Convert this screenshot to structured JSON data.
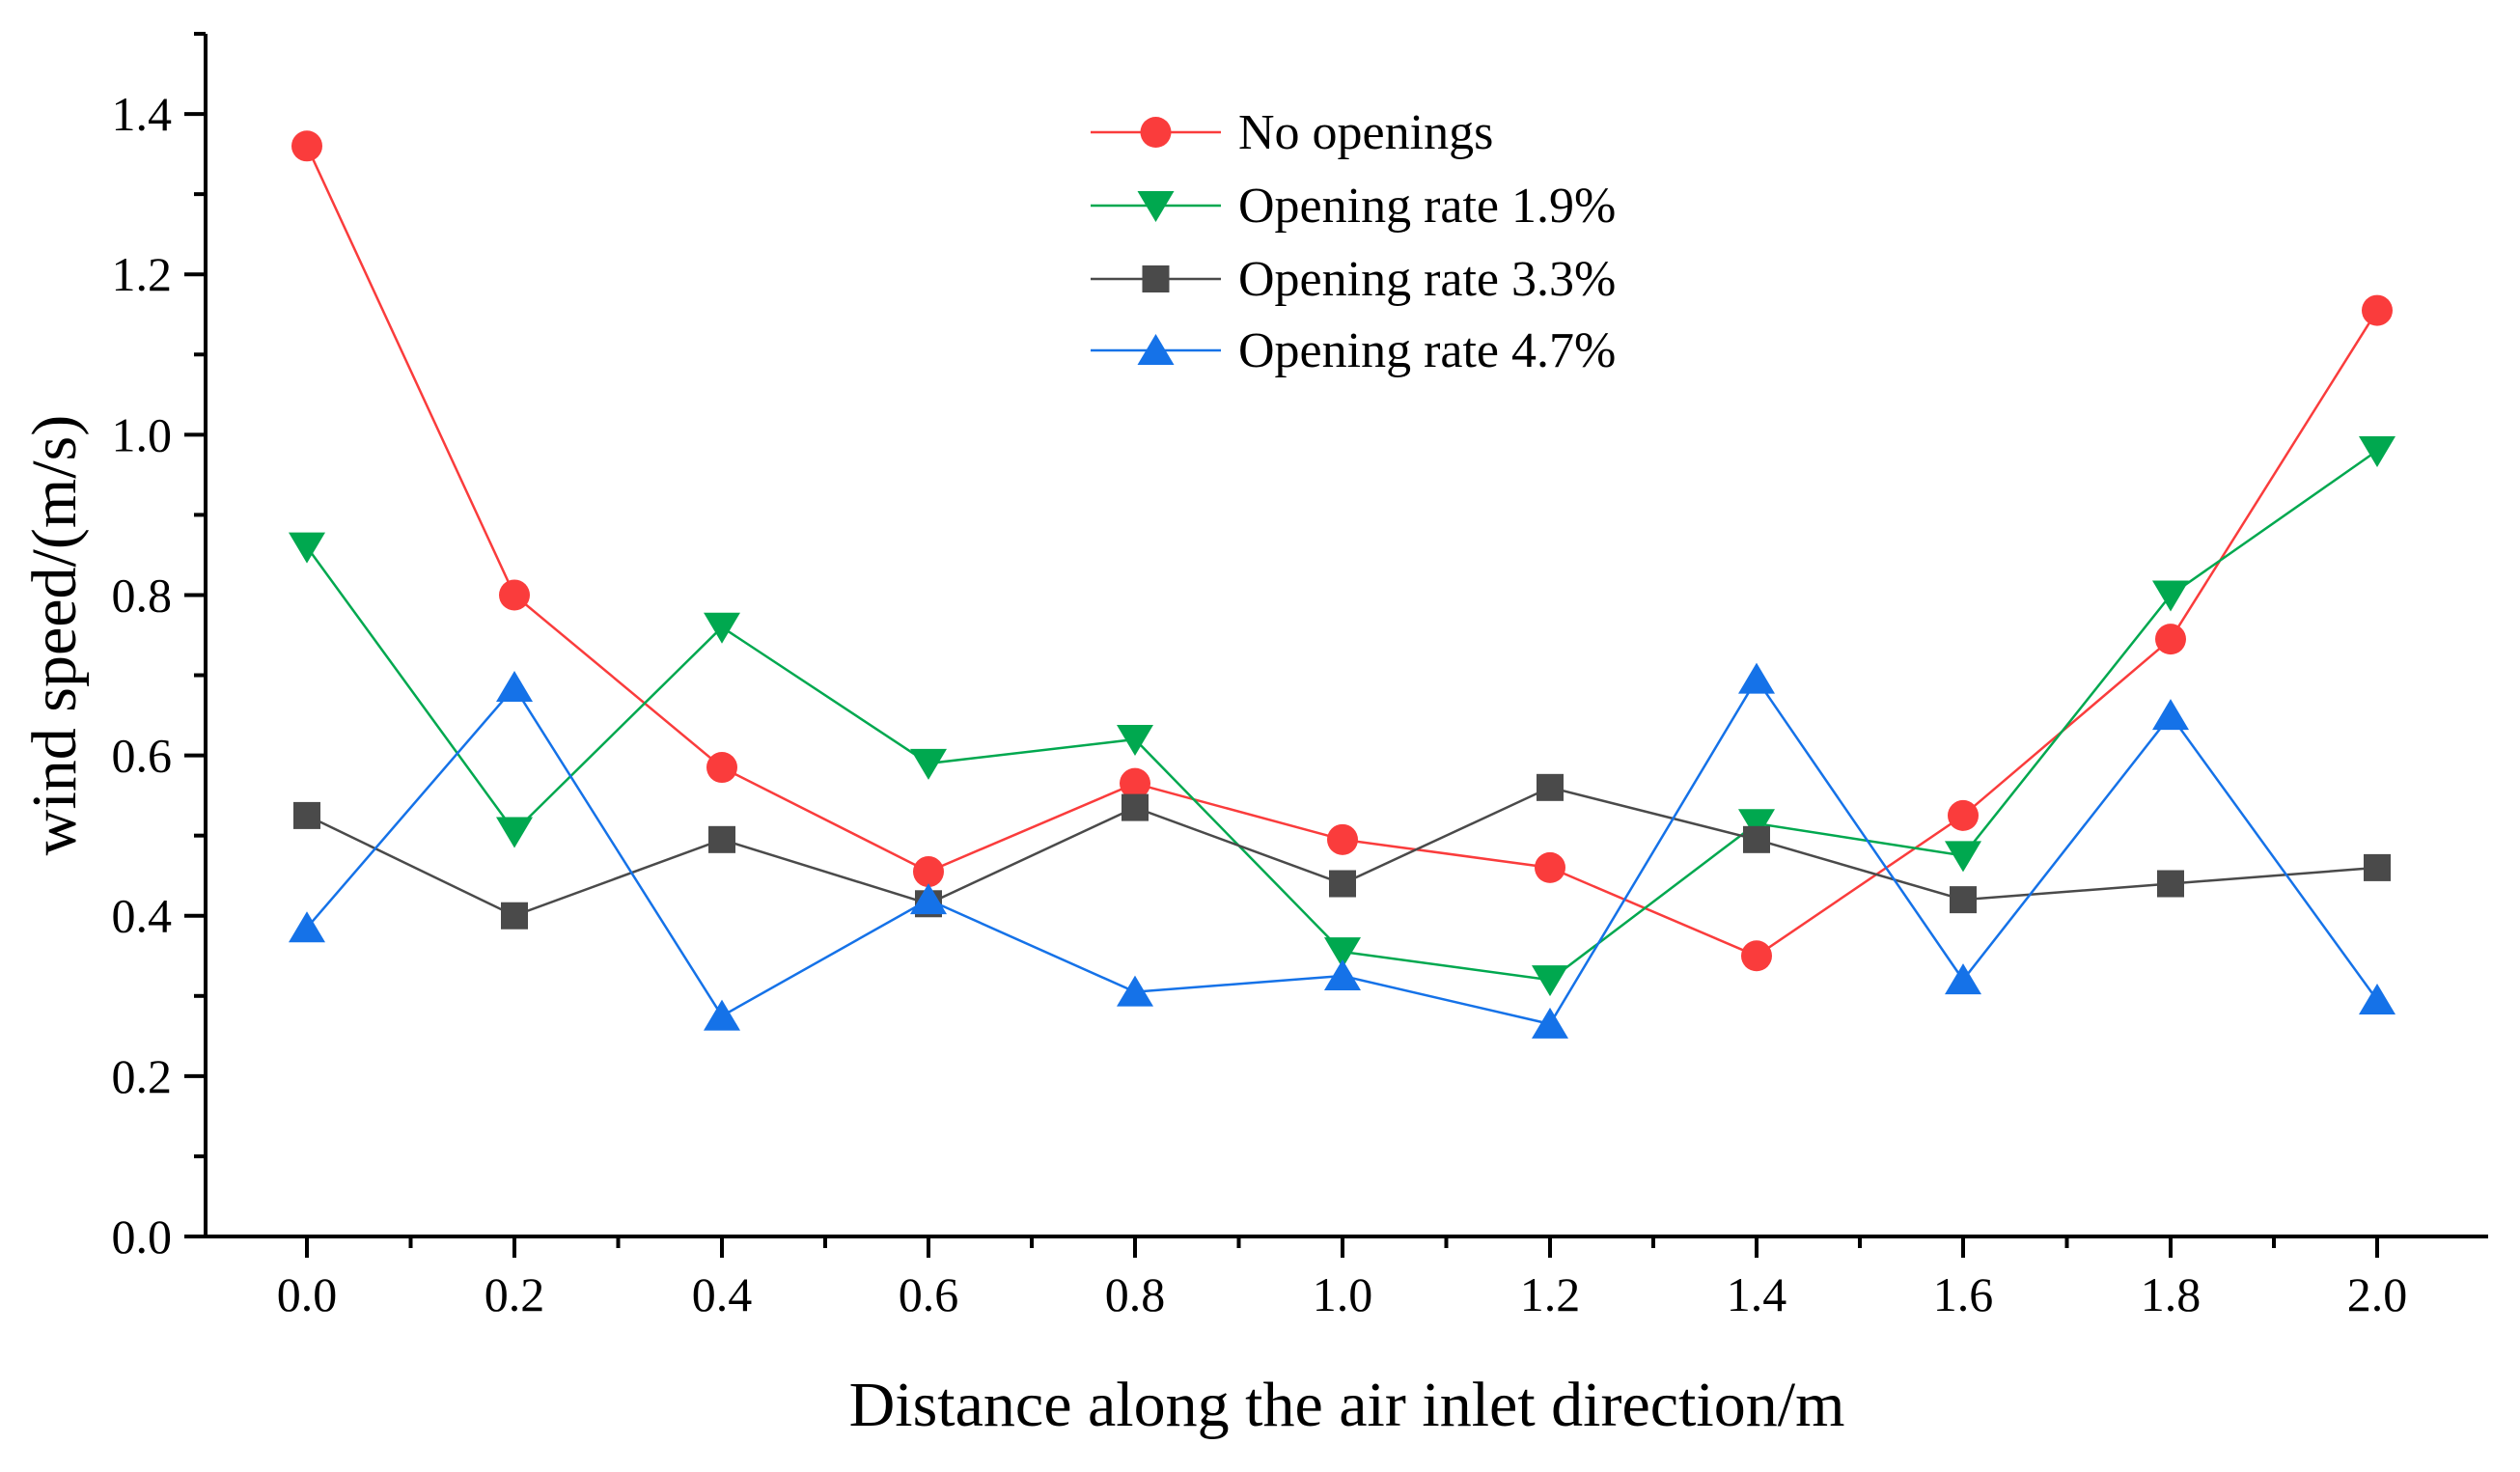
{
  "chart_data": {
    "type": "line",
    "title": "",
    "xlabel": "Distance along the air inlet direction/m",
    "ylabel": "wind speed/(m/s)",
    "x": [
      0.0,
      0.2,
      0.4,
      0.6,
      0.8,
      1.0,
      1.2,
      1.4,
      1.6,
      1.8,
      2.0
    ],
    "x_tick_labels": [
      "0.0",
      "0.2",
      "0.4",
      "0.6",
      "0.8",
      "1.0",
      "1.2",
      "1.4",
      "1.6",
      "1.8",
      "2.0"
    ],
    "y_tick_labels": [
      "0.0",
      "0.2",
      "0.4",
      "0.6",
      "0.8",
      "1.0",
      "1.2",
      "1.4"
    ],
    "y_ticks": [
      0,
      0.2,
      0.4,
      0.6,
      0.8,
      1.0,
      1.2,
      1.4
    ],
    "xlim": [
      -0.1,
      2.1
    ],
    "ylim": [
      0,
      1.5
    ],
    "grid": false,
    "legend_position": "top-center",
    "series": [
      {
        "name": "No openings",
        "color": "#fa3c3c",
        "marker": "circle",
        "values": [
          1.36,
          0.8,
          0.585,
          0.455,
          0.565,
          0.495,
          0.46,
          0.35,
          0.525,
          0.745,
          1.155
        ]
      },
      {
        "name": "Opening rate 1.9%",
        "color": "#00a84f",
        "marker": "triangle-down",
        "values": [
          0.86,
          0.505,
          0.76,
          0.59,
          0.62,
          0.355,
          0.32,
          0.515,
          0.475,
          0.8,
          0.98
        ]
      },
      {
        "name": "Opening rate 3.3%",
        "color": "#4a4a4a",
        "marker": "square",
        "values": [
          0.525,
          0.4,
          0.495,
          0.415,
          0.535,
          0.44,
          0.56,
          0.495,
          0.42,
          0.44,
          0.46
        ]
      },
      {
        "name": "Opening rate 4.7%",
        "color": "#1572e8",
        "marker": "triangle-up",
        "values": [
          0.385,
          0.685,
          0.275,
          0.42,
          0.305,
          0.325,
          0.265,
          0.695,
          0.32,
          0.65,
          0.295
        ]
      }
    ]
  }
}
